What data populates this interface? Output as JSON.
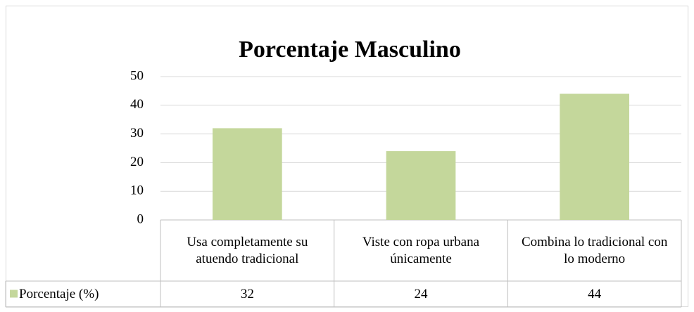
{
  "chart_data": {
    "type": "bar",
    "title": "Porcentaje Masculino",
    "categories": [
      "Usa completamente su atuendo tradicional",
      "Viste con ropa urbana únicamente",
      "Combina lo tradicional con lo moderno"
    ],
    "series": [
      {
        "name": "Porcentaje (%)",
        "color": "#c4d79b",
        "values": [
          32,
          24,
          44
        ]
      }
    ],
    "ylim": [
      0,
      50
    ],
    "yticks": [
      0,
      10,
      20,
      30,
      40,
      50
    ],
    "grid": true
  }
}
